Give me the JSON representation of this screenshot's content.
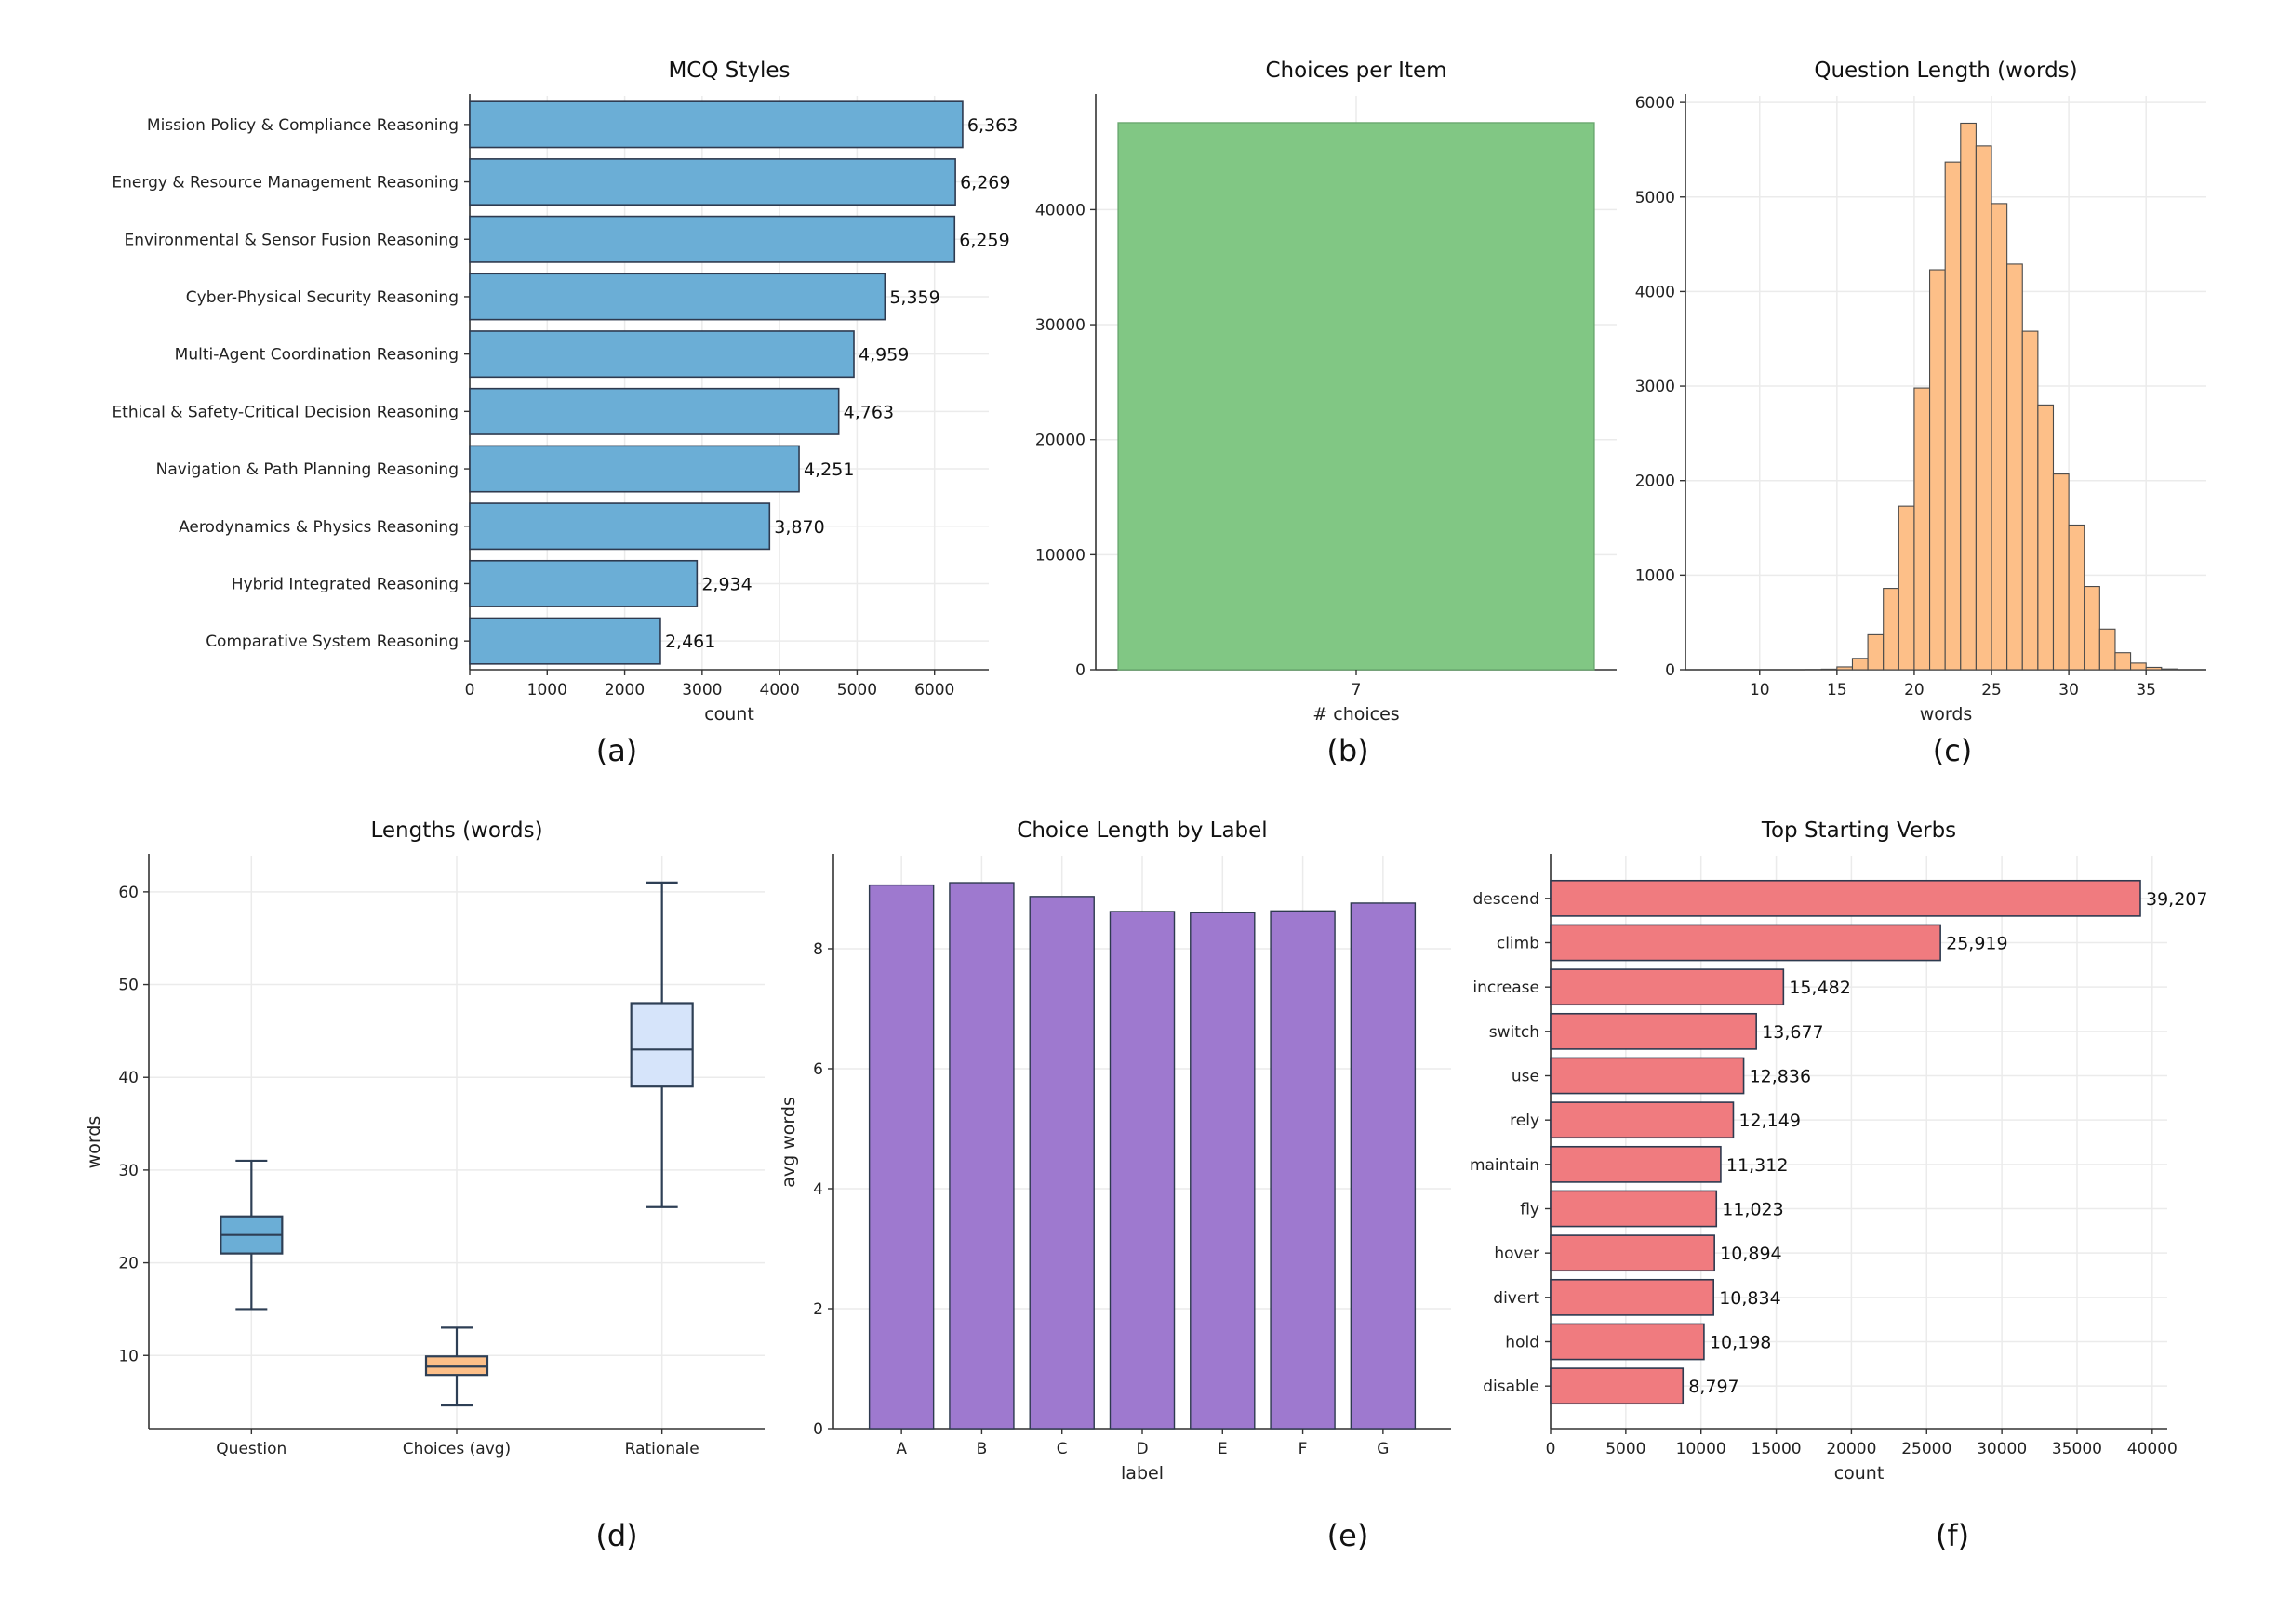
{
  "chart_data": [
    {
      "panel": "(a)",
      "type": "bar",
      "orientation": "horizontal",
      "title": "MCQ Styles",
      "xlabel": "count",
      "ylabel": "",
      "color": "#6baed6",
      "categories": [
        "Mission Policy & Compliance Reasoning",
        "Energy & Resource Management Reasoning",
        "Environmental & Sensor Fusion Reasoning",
        "Cyber-Physical Security Reasoning",
        "Multi-Agent Coordination Reasoning",
        "Ethical & Safety-Critical Decision Reasoning",
        "Navigation & Path Planning Reasoning",
        "Aerodynamics & Physics Reasoning",
        "Hybrid Integrated Reasoning",
        "Comparative System Reasoning"
      ],
      "values": [
        6363,
        6269,
        6259,
        5359,
        4959,
        4763,
        4251,
        3870,
        2934,
        2461
      ],
      "value_labels": [
        "6,363",
        "6,269",
        "6,259",
        "5,359",
        "4,959",
        "4,763",
        "4,251",
        "3,870",
        "2,934",
        "2,461"
      ],
      "xticks": [
        0,
        1000,
        2000,
        3000,
        4000,
        5000,
        6000
      ],
      "xlim": [
        0,
        6700
      ],
      "grid": true
    },
    {
      "panel": "(b)",
      "type": "bar",
      "title": "Choices per Item",
      "xlabel": "# choices",
      "ylabel": "",
      "color": "#81c784",
      "categories": [
        "7"
      ],
      "values": [
        47556
      ],
      "yticks": [
        0,
        10000,
        20000,
        30000,
        40000
      ],
      "ylim": [
        0,
        49900
      ],
      "grid": true
    },
    {
      "panel": "(c)",
      "type": "histogram",
      "title": "Question Length (words)",
      "xlabel": "words",
      "ylabel": "",
      "color": "#fdbf88",
      "bin_start": 7,
      "bin_width": 1,
      "counts": [
        0,
        0,
        0,
        0,
        0,
        0,
        2,
        6,
        30,
        120,
        370,
        860,
        1730,
        2980,
        4230,
        5370,
        5780,
        5540,
        4930,
        4290,
        3580,
        2800,
        2070,
        1530,
        880,
        430,
        180,
        70,
        25,
        8
      ],
      "xticks": [
        10,
        15,
        20,
        25,
        30,
        35
      ],
      "xlim": [
        5.2,
        38.9
      ],
      "yticks": [
        0,
        1000,
        2000,
        3000,
        4000,
        5000,
        6000
      ],
      "ylim": [
        0,
        6070
      ],
      "grid": true
    },
    {
      "panel": "(d)",
      "type": "box",
      "title": "Lengths (words)",
      "xlabel": "",
      "ylabel": "words",
      "boxes": [
        {
          "label": "Question",
          "whisker_low": 15,
          "q1": 21,
          "median": 23,
          "q3": 25,
          "whisker_high": 31,
          "color": "#6baed6"
        },
        {
          "label": "Choices (avg)",
          "whisker_low": 4.6,
          "q1": 7.9,
          "median": 8.8,
          "q3": 9.9,
          "whisker_high": 13,
          "color": "#fdbf88"
        },
        {
          "label": "Rationale",
          "whisker_low": 26,
          "q1": 39,
          "median": 43,
          "q3": 48,
          "whisker_high": 61,
          "color": "#d6e4fa"
        }
      ],
      "yticks": [
        10,
        20,
        30,
        40,
        50,
        60
      ],
      "ylim": [
        2.1,
        63.9
      ],
      "grid": true
    },
    {
      "panel": "(e)",
      "type": "bar",
      "title": "Choice Length by Label",
      "xlabel": "label",
      "ylabel": "avg words",
      "color": "#9e79cf",
      "categories": [
        "A",
        "B",
        "C",
        "D",
        "E",
        "F",
        "G"
      ],
      "values": [
        9.06,
        9.1,
        8.87,
        8.62,
        8.6,
        8.63,
        8.76
      ],
      "yticks": [
        0,
        2,
        4,
        6,
        8
      ],
      "ylim": [
        0,
        9.55
      ],
      "grid": true
    },
    {
      "panel": "(f)",
      "type": "bar",
      "orientation": "horizontal",
      "title": "Top Starting Verbs",
      "xlabel": "count",
      "ylabel": "",
      "color": "#f07b7f",
      "categories": [
        "descend",
        "climb",
        "increase",
        "switch",
        "use",
        "rely",
        "maintain",
        "fly",
        "hover",
        "divert",
        "hold",
        "disable"
      ],
      "values": [
        39207,
        25919,
        15482,
        13677,
        12836,
        12149,
        11312,
        11023,
        10894,
        10834,
        10198,
        8797
      ],
      "value_labels": [
        "39,207",
        "25,919",
        "15,482",
        "13,677",
        "12,836",
        "12,149",
        "11,312",
        "11,023",
        "10,894",
        "10,834",
        "10,198",
        "8,797"
      ],
      "xticks": [
        0,
        5000,
        10000,
        15000,
        20000,
        25000,
        30000,
        35000,
        40000
      ],
      "xlim": [
        0,
        41000
      ],
      "grid": true
    }
  ],
  "colors": {
    "axis": "#333333",
    "grid": "#ebebeb",
    "bar_edge": "#2e3a4f",
    "box_line": "#2e3f55"
  }
}
